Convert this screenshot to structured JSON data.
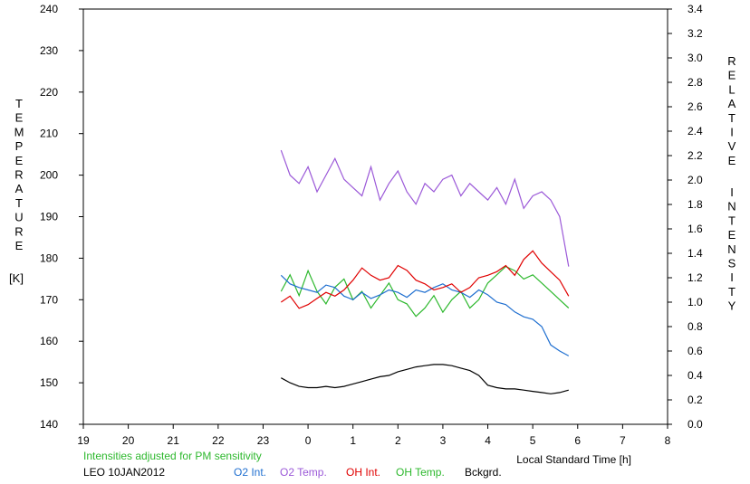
{
  "chart_data": {
    "type": "line",
    "x_axis": {
      "label": "Local Standard Time [h]",
      "ticks": [
        "19",
        "20",
        "21",
        "22",
        "23",
        "0",
        "1",
        "2",
        "3",
        "4",
        "5",
        "6",
        "7",
        "8"
      ],
      "range": [
        19,
        32
      ]
    },
    "y_left": {
      "label_letters": [
        "T",
        "E",
        "M",
        "P",
        "E",
        "R",
        "A",
        "T",
        "U",
        "R",
        "E"
      ],
      "unit": "[K]",
      "range": [
        140,
        240
      ],
      "ticks": [
        "140",
        "150",
        "160",
        "170",
        "180",
        "190",
        "200",
        "210",
        "220",
        "230",
        "240"
      ]
    },
    "y_right": {
      "label_letters_1": [
        "R",
        "E",
        "L",
        "A",
        "T",
        "I",
        "V",
        "E"
      ],
      "label_letters_2": [
        "I",
        "N",
        "T",
        "E",
        "N",
        "S",
        "I",
        "T",
        "Y"
      ],
      "range": [
        0.0,
        3.4
      ],
      "ticks": [
        "0.0",
        "0.2",
        "0.4",
        "0.6",
        "0.8",
        "1.0",
        "1.2",
        "1.4",
        "1.6",
        "1.8",
        "2.0",
        "2.2",
        "2.4",
        "2.6",
        "2.8",
        "3.0",
        "3.2",
        "3.4"
      ]
    },
    "note": "Intensities adjusted for PM sensitivity",
    "station": "LEO 10JAN2012",
    "legend": [
      {
        "label": "O2 Int.",
        "color": "#1f6fd0"
      },
      {
        "label": "O2 Temp.",
        "color": "#9b59d8"
      },
      {
        "label": "OH Int.",
        "color": "#e00000"
      },
      {
        "label": "OH Temp.",
        "color": "#2db82d"
      },
      {
        "label": "Bckgrd.",
        "color": "#000000"
      }
    ],
    "grid": false,
    "series": [
      {
        "key": "o2_temp",
        "axis": "left",
        "color": "#9b59d8",
        "x": [
          23.4,
          23.6,
          23.8,
          24.0,
          24.2,
          24.4,
          24.6,
          24.8,
          25.0,
          25.2,
          25.4,
          25.6,
          25.8,
          26.0,
          26.2,
          26.4,
          26.6,
          26.8,
          27.0,
          27.2,
          27.4,
          27.6,
          27.8,
          28.0,
          28.2,
          28.4,
          28.6,
          28.8,
          29.0,
          29.2,
          29.4,
          29.6,
          29.8
        ],
        "y": [
          206,
          200,
          198,
          202,
          196,
          200,
          204,
          199,
          197,
          195,
          202,
          194,
          198,
          201,
          196,
          193,
          198,
          196,
          199,
          200,
          195,
          198,
          196,
          194,
          197,
          193,
          199,
          192,
          195,
          196,
          194,
          190,
          178
        ]
      },
      {
        "key": "oh_temp",
        "axis": "left",
        "color": "#2db82d",
        "x": [
          23.4,
          23.6,
          23.8,
          24.0,
          24.2,
          24.4,
          24.6,
          24.8,
          25.0,
          25.2,
          25.4,
          25.6,
          25.8,
          26.0,
          26.2,
          26.4,
          26.6,
          26.8,
          27.0,
          27.2,
          27.4,
          27.6,
          27.8,
          28.0,
          28.2,
          28.4,
          28.6,
          28.8,
          29.0,
          29.2,
          29.4,
          29.6,
          29.8
        ],
        "y": [
          172,
          176,
          171,
          177,
          172,
          169,
          173,
          175,
          170,
          172,
          168,
          171,
          174,
          170,
          169,
          166,
          168,
          171,
          167,
          170,
          172,
          168,
          170,
          174,
          176,
          178,
          177,
          175,
          176,
          174,
          172,
          170,
          168
        ]
      },
      {
        "key": "o2_int",
        "axis": "right",
        "color": "#1f6fd0",
        "x": [
          23.4,
          23.6,
          23.8,
          24.0,
          24.2,
          24.4,
          24.6,
          24.8,
          25.0,
          25.2,
          25.4,
          25.6,
          25.8,
          26.0,
          26.2,
          26.4,
          26.6,
          26.8,
          27.0,
          27.2,
          27.4,
          27.6,
          27.8,
          28.0,
          28.2,
          28.4,
          28.6,
          28.8,
          29.0,
          29.2,
          29.4,
          29.6,
          29.8
        ],
        "y": [
          1.22,
          1.15,
          1.12,
          1.1,
          1.08,
          1.14,
          1.12,
          1.05,
          1.02,
          1.08,
          1.03,
          1.06,
          1.1,
          1.08,
          1.04,
          1.1,
          1.08,
          1.12,
          1.15,
          1.1,
          1.08,
          1.04,
          1.1,
          1.06,
          1.0,
          0.98,
          0.92,
          0.88,
          0.86,
          0.8,
          0.65,
          0.6,
          0.56
        ]
      },
      {
        "key": "oh_int",
        "axis": "right",
        "color": "#e00000",
        "x": [
          23.4,
          23.6,
          23.8,
          24.0,
          24.2,
          24.4,
          24.6,
          24.8,
          25.0,
          25.2,
          25.4,
          25.6,
          25.8,
          26.0,
          26.2,
          26.4,
          26.6,
          26.8,
          27.0,
          27.2,
          27.4,
          27.6,
          27.8,
          28.0,
          28.2,
          28.4,
          28.6,
          28.8,
          29.0,
          29.2,
          29.4,
          29.6,
          29.8
        ],
        "y": [
          1.0,
          1.05,
          0.95,
          0.98,
          1.03,
          1.08,
          1.05,
          1.1,
          1.18,
          1.28,
          1.22,
          1.18,
          1.2,
          1.3,
          1.26,
          1.18,
          1.15,
          1.1,
          1.12,
          1.15,
          1.08,
          1.12,
          1.2,
          1.22,
          1.25,
          1.3,
          1.22,
          1.35,
          1.42,
          1.32,
          1.25,
          1.18,
          1.05
        ]
      },
      {
        "key": "bckgrd",
        "axis": "right",
        "color": "#000000",
        "x": [
          23.4,
          23.6,
          23.8,
          24.0,
          24.2,
          24.4,
          24.6,
          24.8,
          25.0,
          25.2,
          25.4,
          25.6,
          25.8,
          26.0,
          26.2,
          26.4,
          26.6,
          26.8,
          27.0,
          27.2,
          27.4,
          27.6,
          27.8,
          28.0,
          28.2,
          28.4,
          28.6,
          28.8,
          29.0,
          29.2,
          29.4,
          29.6,
          29.8
        ],
        "y": [
          0.38,
          0.34,
          0.31,
          0.3,
          0.3,
          0.31,
          0.3,
          0.31,
          0.33,
          0.35,
          0.37,
          0.39,
          0.4,
          0.43,
          0.45,
          0.47,
          0.48,
          0.49,
          0.49,
          0.48,
          0.46,
          0.44,
          0.4,
          0.32,
          0.3,
          0.29,
          0.29,
          0.28,
          0.27,
          0.26,
          0.25,
          0.26,
          0.28
        ]
      }
    ]
  }
}
